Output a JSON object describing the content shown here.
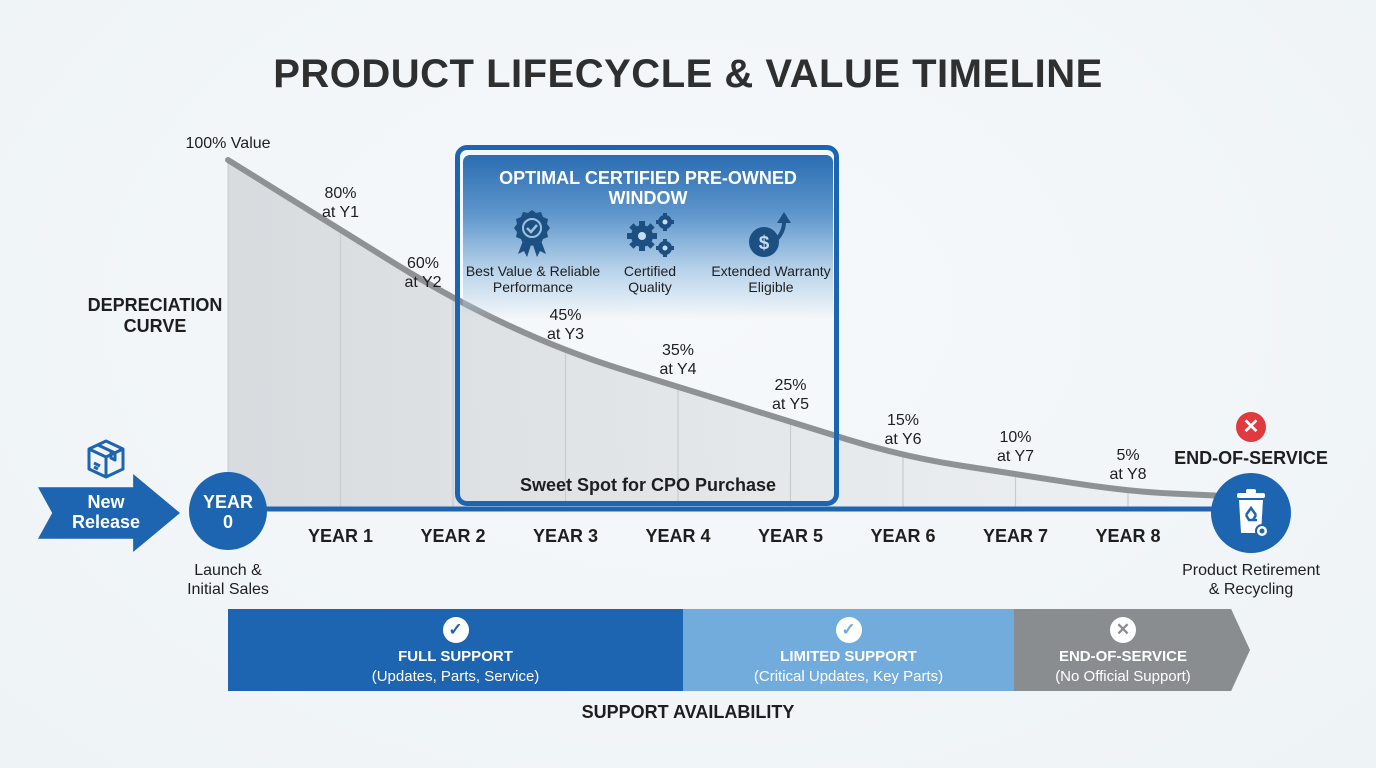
{
  "title": "PRODUCT LIFECYCLE & VALUE TIMELINE",
  "chart_data": {
    "type": "line",
    "title": "PRODUCT LIFECYCLE & VALUE TIMELINE",
    "series_label": "DEPRECIATION CURVE",
    "x": [
      0,
      1,
      2,
      3,
      4,
      5,
      6,
      7,
      8
    ],
    "x_tick_labels": [
      "YEAR 0",
      "YEAR 1",
      "YEAR 2",
      "YEAR 3",
      "YEAR 4",
      "YEAR 5",
      "YEAR 6",
      "YEAR 7",
      "YEAR 8"
    ],
    "values_percent": [
      100,
      80,
      60,
      45,
      35,
      25,
      15,
      10,
      5
    ],
    "ylim": [
      0,
      100
    ],
    "start_label": "100% Value",
    "point_labels": [
      {
        "pct": "80%",
        "at": "at Y1"
      },
      {
        "pct": "60%",
        "at": "at Y2"
      },
      {
        "pct": "45%",
        "at": "at Y3"
      },
      {
        "pct": "35%",
        "at": "at Y4"
      },
      {
        "pct": "25%",
        "at": "at Y5"
      },
      {
        "pct": "15%",
        "at": "at Y6"
      },
      {
        "pct": "10%",
        "at": "at Y7"
      },
      {
        "pct": "5%",
        "at": "at Y8"
      }
    ],
    "highlight_range_years": [
      2,
      5
    ]
  },
  "depreciation_label": [
    "DEPRECIATION",
    "CURVE"
  ],
  "new_release": {
    "label_line1": "New",
    "label_line2": "Release",
    "icon": "package-box-icon"
  },
  "year0": {
    "line1": "YEAR",
    "line2": "0",
    "caption1": "Launch &",
    "caption2": "Initial Sales"
  },
  "end": {
    "heading": "END-OF-SERVICE",
    "status_icon": "red-x-icon",
    "icon": "recycle-bin-icon",
    "caption1": "Product Retirement",
    "caption2": "& Recycling"
  },
  "cpo": {
    "title_line1": "OPTIMAL CERTIFIED PRE-OWNED",
    "title_line2": "WINDOW",
    "features": [
      {
        "icon": "award-badge-icon",
        "line1": "Best Value & Reliable",
        "line2": "Performance"
      },
      {
        "icon": "gears-icon",
        "line1": "Certified",
        "line2": "Quality"
      },
      {
        "icon": "dollar-arrow-up-icon",
        "line1": "Extended Warranty",
        "line2": "Eligible"
      }
    ],
    "sweet_spot": "Sweet Spot for CPO Purchase"
  },
  "support": {
    "caption": "SUPPORT AVAILABILITY",
    "segments": [
      {
        "title": "FULL SUPPORT",
        "sub": "(Updates, Parts, Service)",
        "icon": "check-circle-icon",
        "color": "#1d65b0"
      },
      {
        "title": "LIMITED SUPPORT",
        "sub": "(Critical Updates, Key Parts)",
        "icon": "check-circle-icon",
        "color": "#72acdc"
      },
      {
        "title": "END-OF-SERVICE",
        "sub": "(No Official Support)",
        "icon": "x-circle-icon",
        "color": "#8a8d90"
      }
    ]
  },
  "colors": {
    "primary": "#1d65b0",
    "light": "#72acdc",
    "gray": "#8a8d90",
    "curve": "#8f9294",
    "danger": "#e03a3e"
  }
}
